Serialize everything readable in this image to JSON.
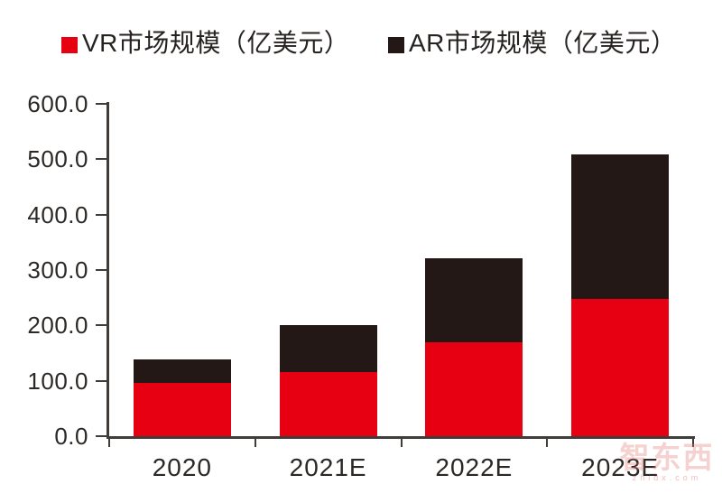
{
  "chart_data": {
    "type": "bar",
    "subtype": "stacked-vertical",
    "title": "",
    "categories": [
      "2020",
      "2021E",
      "2022E",
      "2023E"
    ],
    "series": [
      {
        "name": "VR市场规模（亿美元）",
        "color": "#e60012",
        "values": [
          96,
          115,
          170,
          248
        ]
      },
      {
        "name": "AR市场规模（亿美元）",
        "color": "#231815",
        "values": [
          42,
          85,
          152,
          260
        ]
      }
    ],
    "stacked_totals": [
      138,
      200,
      322,
      508
    ],
    "xlabel": "",
    "ylabel": "",
    "ylim": [
      0,
      600
    ],
    "ytick_step": 100,
    "ytick_labels": [
      "0.0",
      "100.0",
      "200.0",
      "300.0",
      "400.0",
      "500.0",
      "600.0"
    ],
    "grid": false,
    "legend_position": "top"
  },
  "watermark": {
    "brand": "智东西",
    "domain_text": "zhidx.com"
  },
  "colors": {
    "vr_red": "#e60012",
    "ar_black": "#231815",
    "axis": "#3f3c3a",
    "text": "#2b2826",
    "background": "#ffffff"
  }
}
